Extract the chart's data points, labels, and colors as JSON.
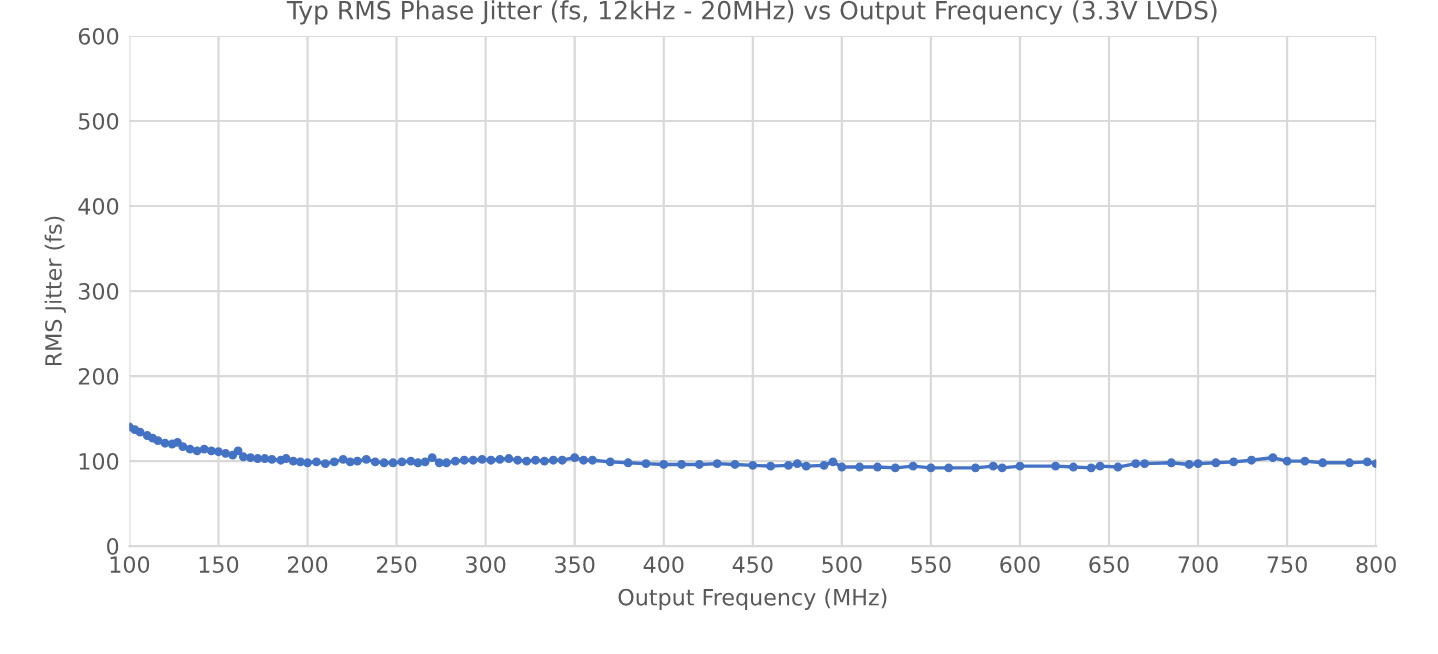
{
  "chart_data": {
    "type": "line",
    "title": "Typ RMS Phase Jitter (fs, 12kHz - 20MHz) vs Output Frequency (3.3V LVDS)",
    "xlabel": "Output Frequency (MHz)",
    "ylabel": "RMS Jitter (fs)",
    "xlim": [
      100,
      800
    ],
    "xticks": [
      100,
      150,
      200,
      250,
      300,
      350,
      400,
      450,
      500,
      550,
      600,
      650,
      700,
      750,
      800
    ],
    "ylim": [
      0,
      600
    ],
    "yticks": [
      0,
      100,
      200,
      300,
      400,
      500,
      600
    ],
    "grid": true,
    "legend": false,
    "marker": "circle",
    "line_style": "solid",
    "series": [
      {
        "color": "#4472c4",
        "x": [
          100,
          103,
          106,
          110,
          113,
          116,
          120,
          124,
          127,
          130,
          134,
          138,
          142,
          146,
          150,
          154,
          158,
          161,
          164,
          168,
          172,
          176,
          180,
          185,
          188,
          192,
          196,
          200,
          205,
          210,
          215,
          220,
          224,
          228,
          233,
          238,
          243,
          248,
          253,
          258,
          262,
          266,
          270,
          274,
          278,
          283,
          288,
          293,
          298,
          303,
          308,
          313,
          318,
          323,
          328,
          333,
          338,
          343,
          350,
          355,
          360,
          370,
          380,
          390,
          400,
          410,
          420,
          430,
          440,
          450,
          460,
          470,
          475,
          480,
          490,
          495,
          500,
          510,
          520,
          530,
          540,
          550,
          560,
          575,
          585,
          590,
          600,
          620,
          630,
          640,
          645,
          655,
          665,
          670,
          685,
          695,
          700,
          710,
          720,
          730,
          742,
          750,
          760,
          770,
          785,
          795,
          800
        ],
        "values": [
          140,
          137,
          134,
          130,
          127,
          124,
          121,
          120,
          122,
          117,
          114,
          112,
          114,
          112,
          111,
          109,
          107,
          112,
          105,
          104,
          103,
          103,
          102,
          101,
          103,
          100,
          99,
          98,
          99,
          97,
          99,
          102,
          99,
          100,
          102,
          99,
          98,
          98,
          99,
          100,
          98,
          99,
          104,
          98,
          98,
          100,
          101,
          101,
          102,
          101,
          102,
          103,
          101,
          100,
          101,
          100,
          101,
          101,
          104,
          101,
          101,
          99,
          98,
          97,
          96,
          96,
          96,
          97,
          96,
          95,
          94,
          95,
          97,
          94,
          95,
          99,
          93,
          93,
          93,
          92,
          94,
          92,
          92,
          92,
          94,
          92,
          94,
          94,
          93,
          92,
          94,
          93,
          97,
          97,
          98,
          96,
          97,
          98,
          99,
          101,
          104,
          100,
          100,
          98,
          98,
          99,
          97
        ]
      }
    ]
  }
}
